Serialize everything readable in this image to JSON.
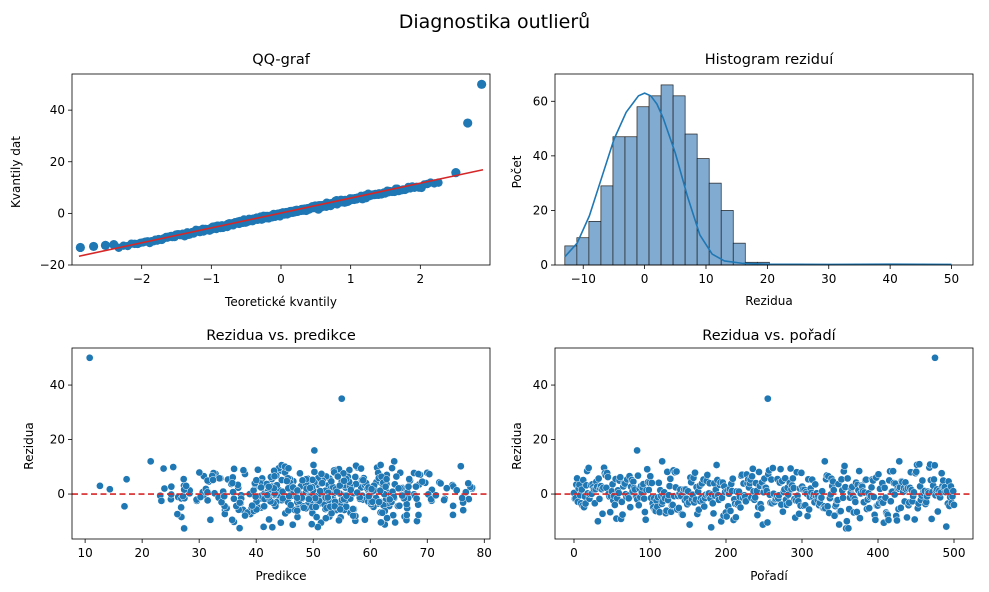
{
  "figure": {
    "suptitle": "Diagnostika outlierů",
    "point_color": "#1f77b4",
    "line_red": "#d62728",
    "hist_fill": "#7ba7cf",
    "kde_color": "#1f77b4"
  },
  "chart_data": [
    {
      "type": "scatter",
      "title": "QQ-graf",
      "xlabel": "Teoretické kvantily",
      "ylabel": "Kvantily dat",
      "xlim": [
        -3.0,
        3.0
      ],
      "ylim": [
        -20,
        54
      ],
      "xticks": [
        -2,
        -1,
        0,
        1,
        2
      ],
      "yticks": [
        -20,
        0,
        20,
        40
      ],
      "fit_line": {
        "x": [
          -2.9,
          2.9
        ],
        "y": [
          -16.6,
          16.9
        ]
      },
      "outliers": [
        {
          "x": 2.51,
          "y": 15.8
        },
        {
          "x": 2.68,
          "y": 35.0
        },
        {
          "x": 2.88,
          "y": 50.0
        }
      ],
      "tail_points": [
        {
          "x": -2.88,
          "y": -13.2
        },
        {
          "x": -2.69,
          "y": -12.8
        },
        {
          "x": -2.52,
          "y": -12.4
        },
        {
          "x": -2.4,
          "y": -12.1
        }
      ],
      "body_trend": {
        "x_from": -2.35,
        "x_to": 2.5,
        "n": 494,
        "slope": 5.55,
        "intercept": -0.3
      }
    },
    {
      "type": "bar",
      "title": "Histogram reziduí",
      "xlabel": "Rezidua",
      "ylabel": "Počet",
      "xlim": [
        -14.6,
        53.5
      ],
      "ylim": [
        0,
        70
      ],
      "xticks": [
        -10,
        0,
        10,
        20,
        30,
        40,
        50
      ],
      "yticks": [
        0,
        20,
        40,
        60
      ],
      "bin_start": -13.0,
      "bin_width": 1.96,
      "counts": [
        7,
        10,
        16,
        29,
        47,
        47,
        58,
        62,
        66,
        62,
        48,
        39,
        30,
        20,
        8,
        1,
        1,
        0,
        0,
        0,
        0,
        0,
        0,
        0,
        0,
        0,
        0,
        0,
        0,
        0,
        0,
        0,
        0,
        0,
        0,
        0,
        0,
        0,
        0,
        1,
        0,
        0,
        0,
        0,
        0,
        0,
        0,
        0,
        0,
        0,
        0,
        0,
        0,
        0,
        0,
        0,
        0,
        0,
        0,
        0,
        0,
        0,
        0,
        1
      ],
      "kde": {
        "x": [
          -13,
          -11,
          -9,
          -7,
          -5,
          -3,
          -1,
          0,
          1,
          2,
          3,
          5,
          7,
          9,
          11,
          13,
          16,
          20,
          30,
          40,
          50
        ],
        "y": [
          3,
          8,
          18,
          32,
          46,
          56,
          62,
          63,
          62,
          59,
          54,
          41,
          25,
          11,
          4,
          1.5,
          0.6,
          0.3,
          0.2,
          0.3,
          0.2
        ]
      }
    },
    {
      "type": "scatter",
      "title": "Rezidua vs. predikce",
      "xlabel": "Predikce",
      "ylabel": "Rezidua",
      "xlim": [
        7.7,
        81.0
      ],
      "ylim": [
        -16.5,
        53.6
      ],
      "xticks": [
        10,
        20,
        30,
        40,
        50,
        60,
        70,
        80
      ],
      "yticks": [
        0,
        20,
        40
      ],
      "hline": 0,
      "outliers": [
        {
          "x": 10.8,
          "y": 50.0
        },
        {
          "x": 55.0,
          "y": 35.0
        },
        {
          "x": 50.2,
          "y": 16.0
        },
        {
          "x": 21.5,
          "y": 12.0
        },
        {
          "x": 64.2,
          "y": 12.0
        },
        {
          "x": 12.6,
          "y": 3.0
        }
      ],
      "body": {
        "x_from": 14.0,
        "x_to": 78.0,
        "x_center": 50.0,
        "n": 494,
        "sd": 5.0
      }
    },
    {
      "type": "scatter",
      "title": "Rezidua vs. pořadí",
      "xlabel": "Pořadí",
      "ylabel": "Rezidua",
      "xlim": [
        -25,
        525
      ],
      "ylim": [
        -16.5,
        53.6
      ],
      "xticks": [
        0,
        100,
        200,
        300,
        400,
        500
      ],
      "yticks": [
        0,
        20,
        40
      ],
      "hline": 0,
      "outliers": [
        {
          "x": 475,
          "y": 50.0
        },
        {
          "x": 255,
          "y": 35.0
        },
        {
          "x": 83,
          "y": 16.0
        },
        {
          "x": 116,
          "y": 12.0
        },
        {
          "x": 330,
          "y": 12.0
        },
        {
          "x": 428,
          "y": 12.0
        }
      ],
      "body": {
        "x_from": 0,
        "x_to": 500,
        "n": 494,
        "sd": 5.0
      }
    }
  ]
}
